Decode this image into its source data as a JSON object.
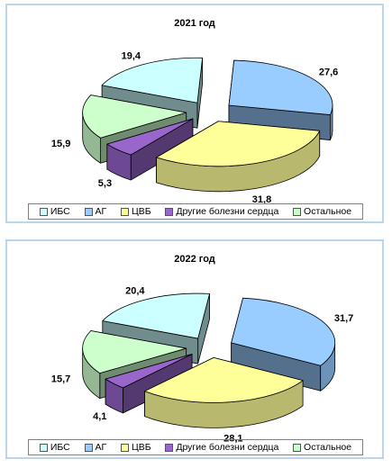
{
  "chart_data": [
    {
      "type": "pie",
      "title": "2021 год",
      "categories": [
        "ИБС",
        "АГ",
        "ЦВБ",
        "Другие болезни сердца",
        "Остальное"
      ],
      "values": [
        19.4,
        27.6,
        31.8,
        5.3,
        15.9
      ],
      "value_labels": [
        "19,4",
        "27,6",
        "31,8",
        "5,3",
        "15,9"
      ],
      "legend_position": "bottom",
      "exploded": true,
      "style": "3d"
    },
    {
      "type": "pie",
      "title": "2022 год",
      "categories": [
        "ИБС",
        "АГ",
        "ЦВБ",
        "Другие болезни сердца",
        "Остальное"
      ],
      "values": [
        20.4,
        31.7,
        28.1,
        4.1,
        15.7
      ],
      "value_labels": [
        "20,4",
        "31,7",
        "28,1",
        "4,1",
        "15,7"
      ],
      "legend_position": "bottom",
      "exploded": true,
      "style": "3d"
    }
  ],
  "colors": {
    "ИБС": "#ccffff",
    "АГ": "#99ccff",
    "ЦВБ": "#ffff99",
    "Другие болезни сердца": "#9966cc",
    "Остальное": "#ccffcc"
  }
}
